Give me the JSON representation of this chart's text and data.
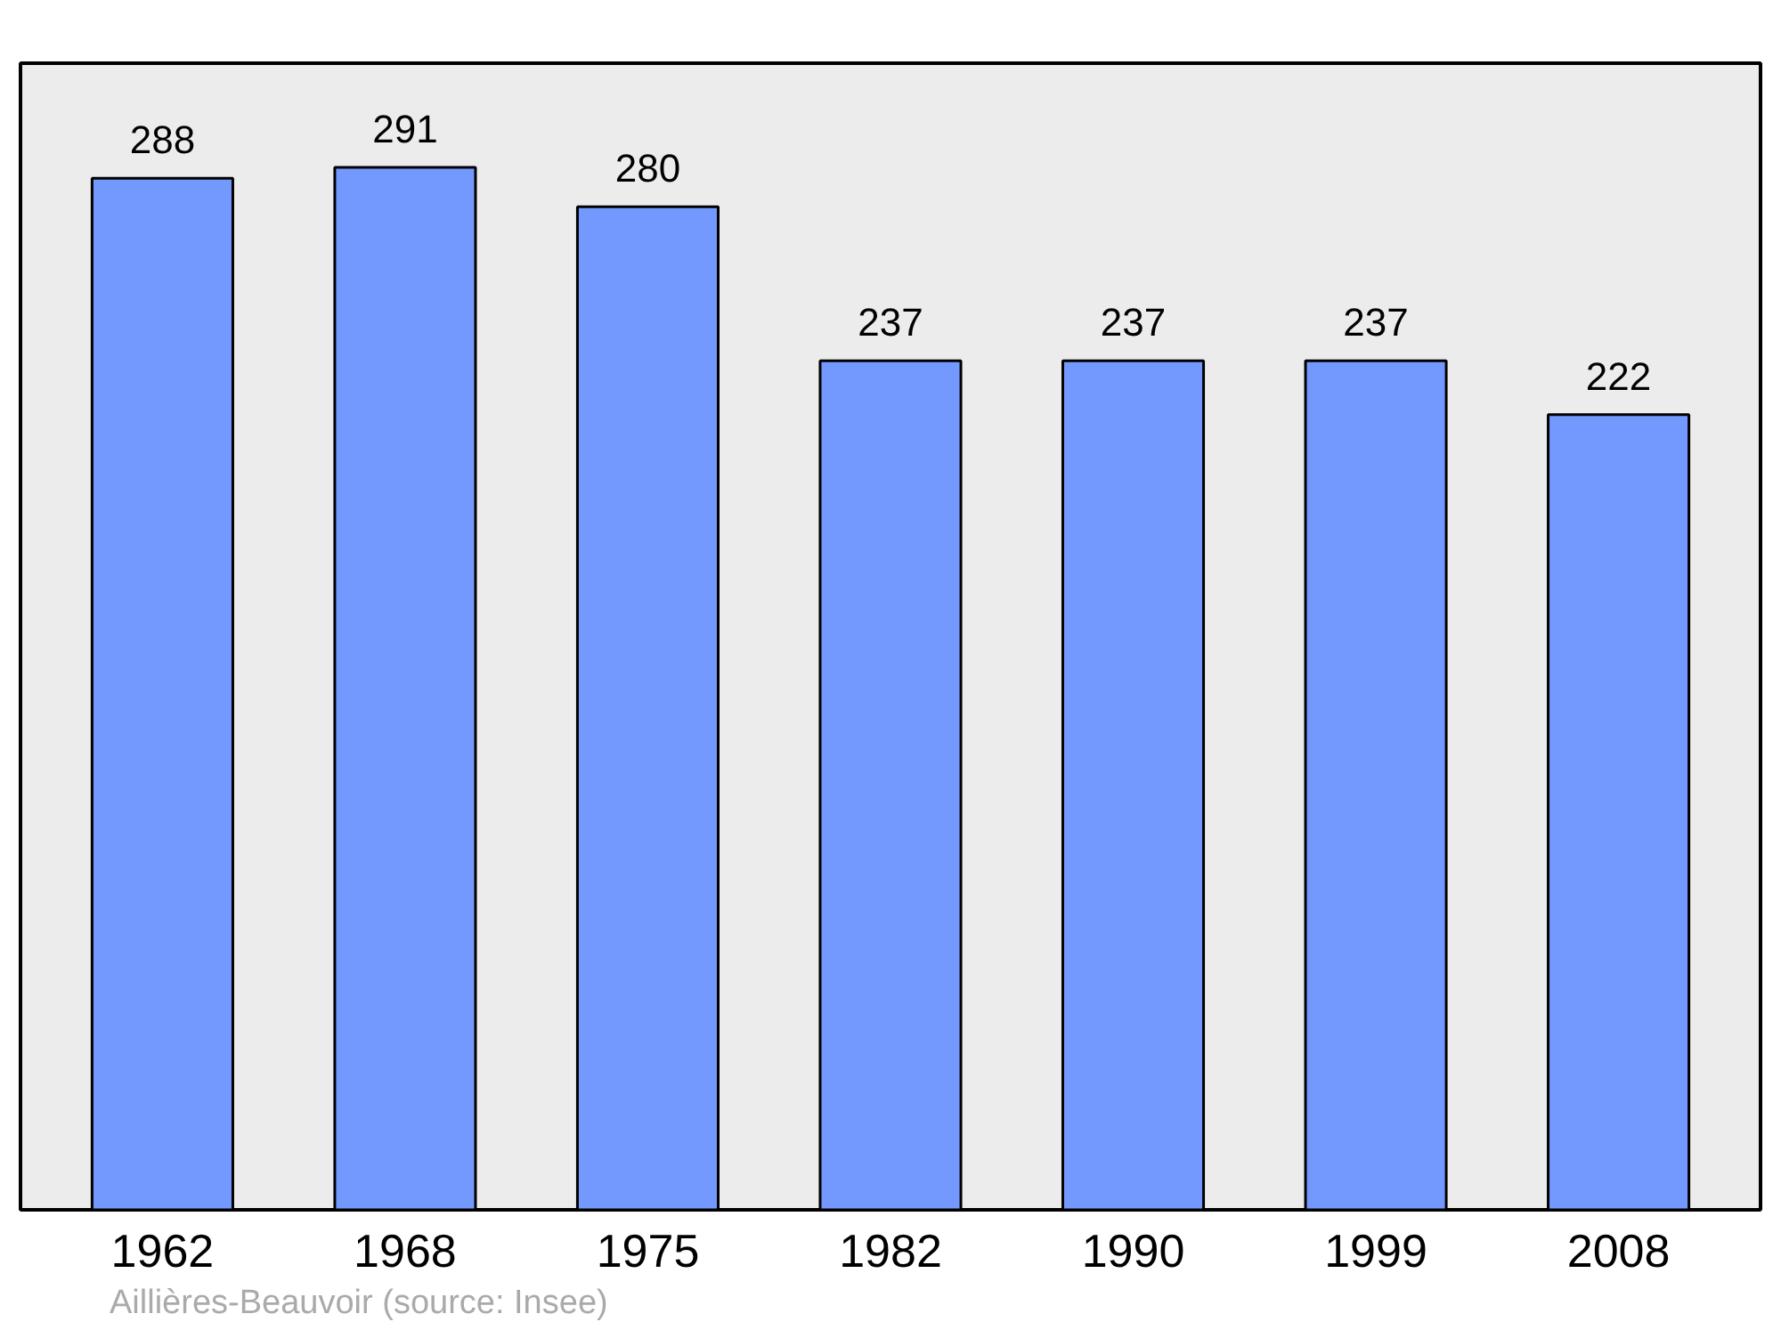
{
  "chart_data": {
    "type": "bar",
    "categories": [
      "1962",
      "1968",
      "1975",
      "1982",
      "1990",
      "1999",
      "2008"
    ],
    "values": [
      288,
      291,
      280,
      237,
      237,
      237,
      222
    ],
    "color": "#7399ff",
    "data_labels": true,
    "grid": false,
    "annotations": [
      "Aillières-Beauvoir    (source: Insee)"
    ]
  }
}
